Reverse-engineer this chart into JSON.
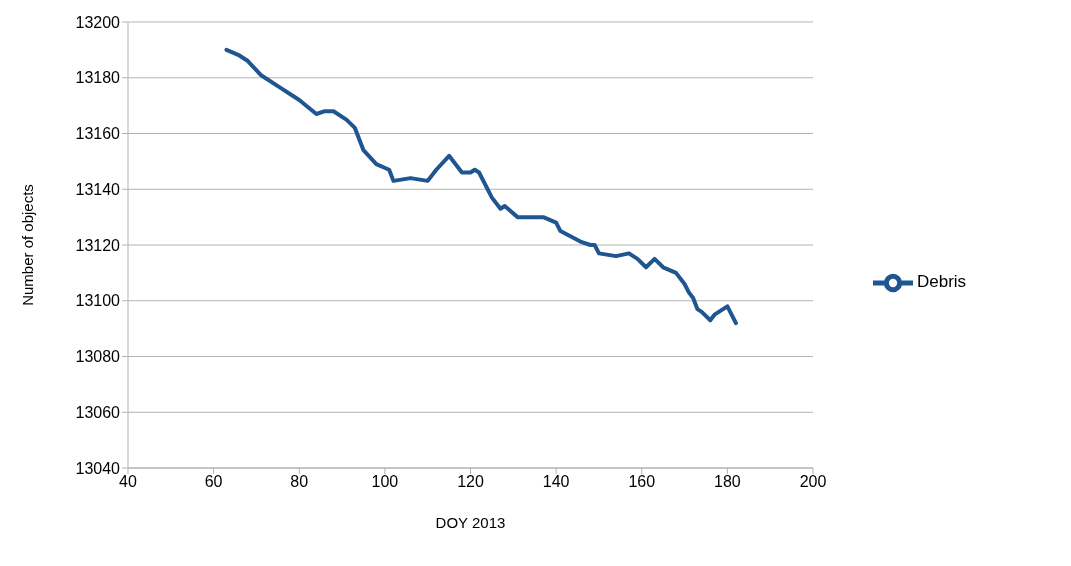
{
  "chart_data": {
    "type": "line",
    "xlabel": "DOY 2013",
    "ylabel": "Number of objects",
    "xlim": [
      40,
      200
    ],
    "xticks": [
      40,
      60,
      80,
      100,
      120,
      140,
      160,
      180,
      200
    ],
    "ylim": [
      13040,
      13200
    ],
    "yticks": [
      13040,
      13060,
      13080,
      13100,
      13120,
      13140,
      13160,
      13180,
      13200
    ],
    "grid": "y",
    "legend": "right",
    "marker": "none",
    "line_style": "solid",
    "x": [
      63,
      66,
      68,
      71,
      75,
      80,
      84,
      86,
      88,
      91,
      93,
      95,
      98,
      101,
      102,
      106,
      110,
      112,
      115,
      118,
      120,
      121,
      122,
      125,
      127,
      128,
      131,
      137,
      140,
      141,
      146,
      148,
      149,
      150,
      154,
      157,
      159,
      161,
      163,
      165,
      168,
      170,
      171,
      172,
      173,
      174,
      176,
      177,
      180,
      182
    ],
    "series": [
      {
        "name": "Debris",
        "color": "#1f5591",
        "values": [
          13190,
          13188,
          13186,
          13181,
          13177,
          13172,
          13167,
          13168,
          13168,
          13165,
          13162,
          13154,
          13149,
          13147,
          13143,
          13144,
          13143,
          13147,
          13152,
          13146,
          13146,
          13147,
          13146,
          13137,
          13133,
          13134,
          13130,
          13130,
          13128,
          13125,
          13121,
          13120,
          13120,
          13117,
          13116,
          13117,
          13115,
          13112,
          13115,
          13112,
          13110,
          13106,
          13103,
          13101,
          13097,
          13096,
          13093,
          13095,
          13098,
          13092
        ]
      }
    ]
  }
}
